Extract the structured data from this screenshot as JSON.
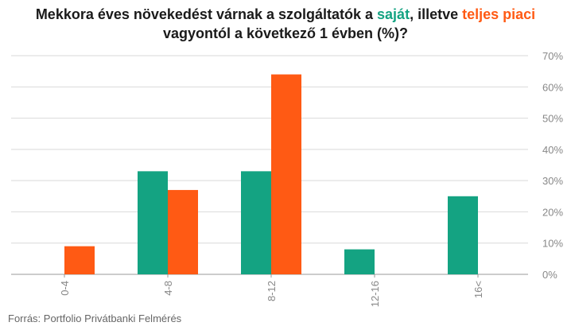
{
  "title": {
    "part1": "Mekkora éves növekedést várnak a szolgáltatók a ",
    "highlight1": "saját",
    "part2": ", illetve ",
    "highlight2": "teljes piaci",
    "line2": "vagyontól a következő 1 évben (%)?"
  },
  "source": "Forrás: Portfolio Privátbanki Felmérés",
  "colors": {
    "green": "#14a382",
    "orange": "#ff5a14",
    "grid": "#d9d9d9",
    "axis": "#999999"
  },
  "chart_data": {
    "type": "bar",
    "categories": [
      "0-4",
      "4-8",
      "8-12",
      "12-16",
      "16<"
    ],
    "series": [
      {
        "name": "saját",
        "color": "#14a382",
        "values": [
          0,
          33,
          33,
          8,
          25
        ]
      },
      {
        "name": "teljes piaci",
        "color": "#ff5a14",
        "values": [
          9,
          27,
          64,
          0,
          0
        ]
      }
    ],
    "ylim": [
      0,
      70
    ],
    "yticks": [
      "0%",
      "10%",
      "20%",
      "30%",
      "40%",
      "50%",
      "60%",
      "70%"
    ],
    "y_axis_position": "right",
    "grid": true,
    "legend": "in title"
  }
}
